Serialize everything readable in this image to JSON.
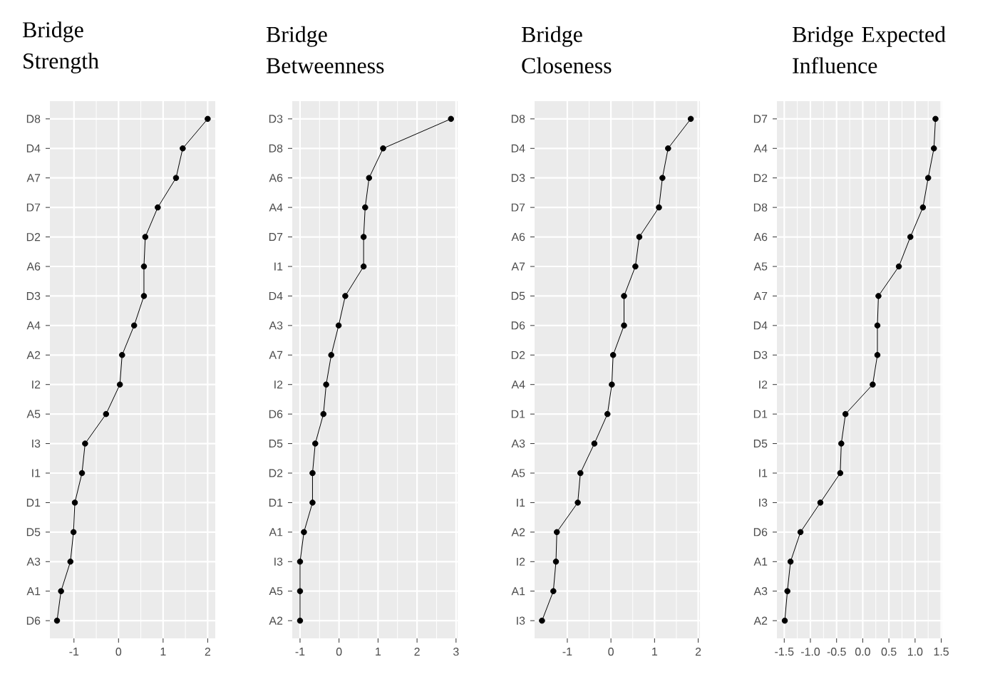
{
  "chart_data": [
    {
      "type": "line",
      "title": "Bridge Strength",
      "orientation": "horizontal",
      "color": "#000000",
      "marker": "circle",
      "line_style": "solid",
      "grid": true,
      "categories": [
        "D8",
        "D4",
        "A7",
        "D7",
        "D2",
        "A6",
        "D3",
        "A4",
        "A2",
        "I2",
        "A5",
        "I3",
        "I1",
        "D1",
        "D5",
        "A3",
        "A1",
        "D6"
      ],
      "values": [
        2.0,
        1.44,
        1.29,
        0.88,
        0.6,
        0.57,
        0.57,
        0.35,
        0.08,
        0.03,
        -0.28,
        -0.75,
        -0.82,
        -0.98,
        -1.01,
        -1.08,
        -1.29,
        -1.38
      ],
      "xlim": [
        -1.54,
        2.17
      ],
      "xticks": [
        -1,
        0,
        1,
        2
      ]
    },
    {
      "type": "line",
      "title": "Bridge Betweenness",
      "orientation": "horizontal",
      "color": "#000000",
      "marker": "circle",
      "line_style": "solid",
      "grid": true,
      "categories": [
        "D3",
        "D8",
        "A6",
        "A4",
        "D7",
        "I1",
        "D4",
        "A3",
        "A7",
        "I2",
        "D6",
        "D5",
        "D2",
        "D1",
        "A1",
        "I3",
        "A5",
        "A2"
      ],
      "values": [
        2.87,
        1.13,
        0.77,
        0.67,
        0.63,
        0.63,
        0.16,
        -0.01,
        -0.2,
        -0.33,
        -0.4,
        -0.61,
        -0.68,
        -0.68,
        -0.9,
        -1.0,
        -1.0,
        -1.0
      ],
      "xlim": [
        -1.2,
        3.04
      ],
      "xticks": [
        -1,
        0,
        1,
        2,
        3
      ]
    },
    {
      "type": "line",
      "title": "Bridge Closeness",
      "orientation": "horizontal",
      "color": "#000000",
      "marker": "circle",
      "line_style": "solid",
      "grid": true,
      "categories": [
        "D8",
        "D4",
        "D3",
        "D7",
        "A6",
        "A7",
        "D5",
        "D6",
        "D2",
        "A4",
        "D1",
        "A3",
        "A5",
        "I1",
        "A2",
        "I2",
        "A1",
        "I3"
      ],
      "values": [
        1.83,
        1.31,
        1.18,
        1.1,
        0.65,
        0.56,
        0.3,
        0.3,
        0.05,
        0.02,
        -0.08,
        -0.38,
        -0.7,
        -0.76,
        -1.24,
        -1.26,
        -1.32,
        -1.58
      ],
      "xlim": [
        -1.75,
        2.04
      ],
      "xticks": [
        -1,
        0,
        1,
        2
      ]
    },
    {
      "type": "line",
      "title": "Bridge Expected Influence",
      "orientation": "horizontal",
      "color": "#000000",
      "marker": "circle",
      "line_style": "solid",
      "grid": true,
      "categories": [
        "D7",
        "A4",
        "D2",
        "D8",
        "A6",
        "A5",
        "A7",
        "D4",
        "D3",
        "I2",
        "D1",
        "D5",
        "I1",
        "I3",
        "D6",
        "A1",
        "A3",
        "A2"
      ],
      "values": [
        1.39,
        1.36,
        1.25,
        1.15,
        0.91,
        0.69,
        0.3,
        0.28,
        0.28,
        0.19,
        -0.33,
        -0.41,
        -0.43,
        -0.81,
        -1.19,
        -1.38,
        -1.44,
        -1.49
      ],
      "xlim": [
        -1.64,
        1.52
      ],
      "xticks": [
        -1.5,
        {
          "value": -1.0,
          "label": "-1.0"
        },
        -0.5,
        {
          "value": 0.0,
          "label": "0.0"
        },
        0.5,
        {
          "value": 1.0,
          "label": "1.0"
        },
        1.5
      ]
    }
  ]
}
